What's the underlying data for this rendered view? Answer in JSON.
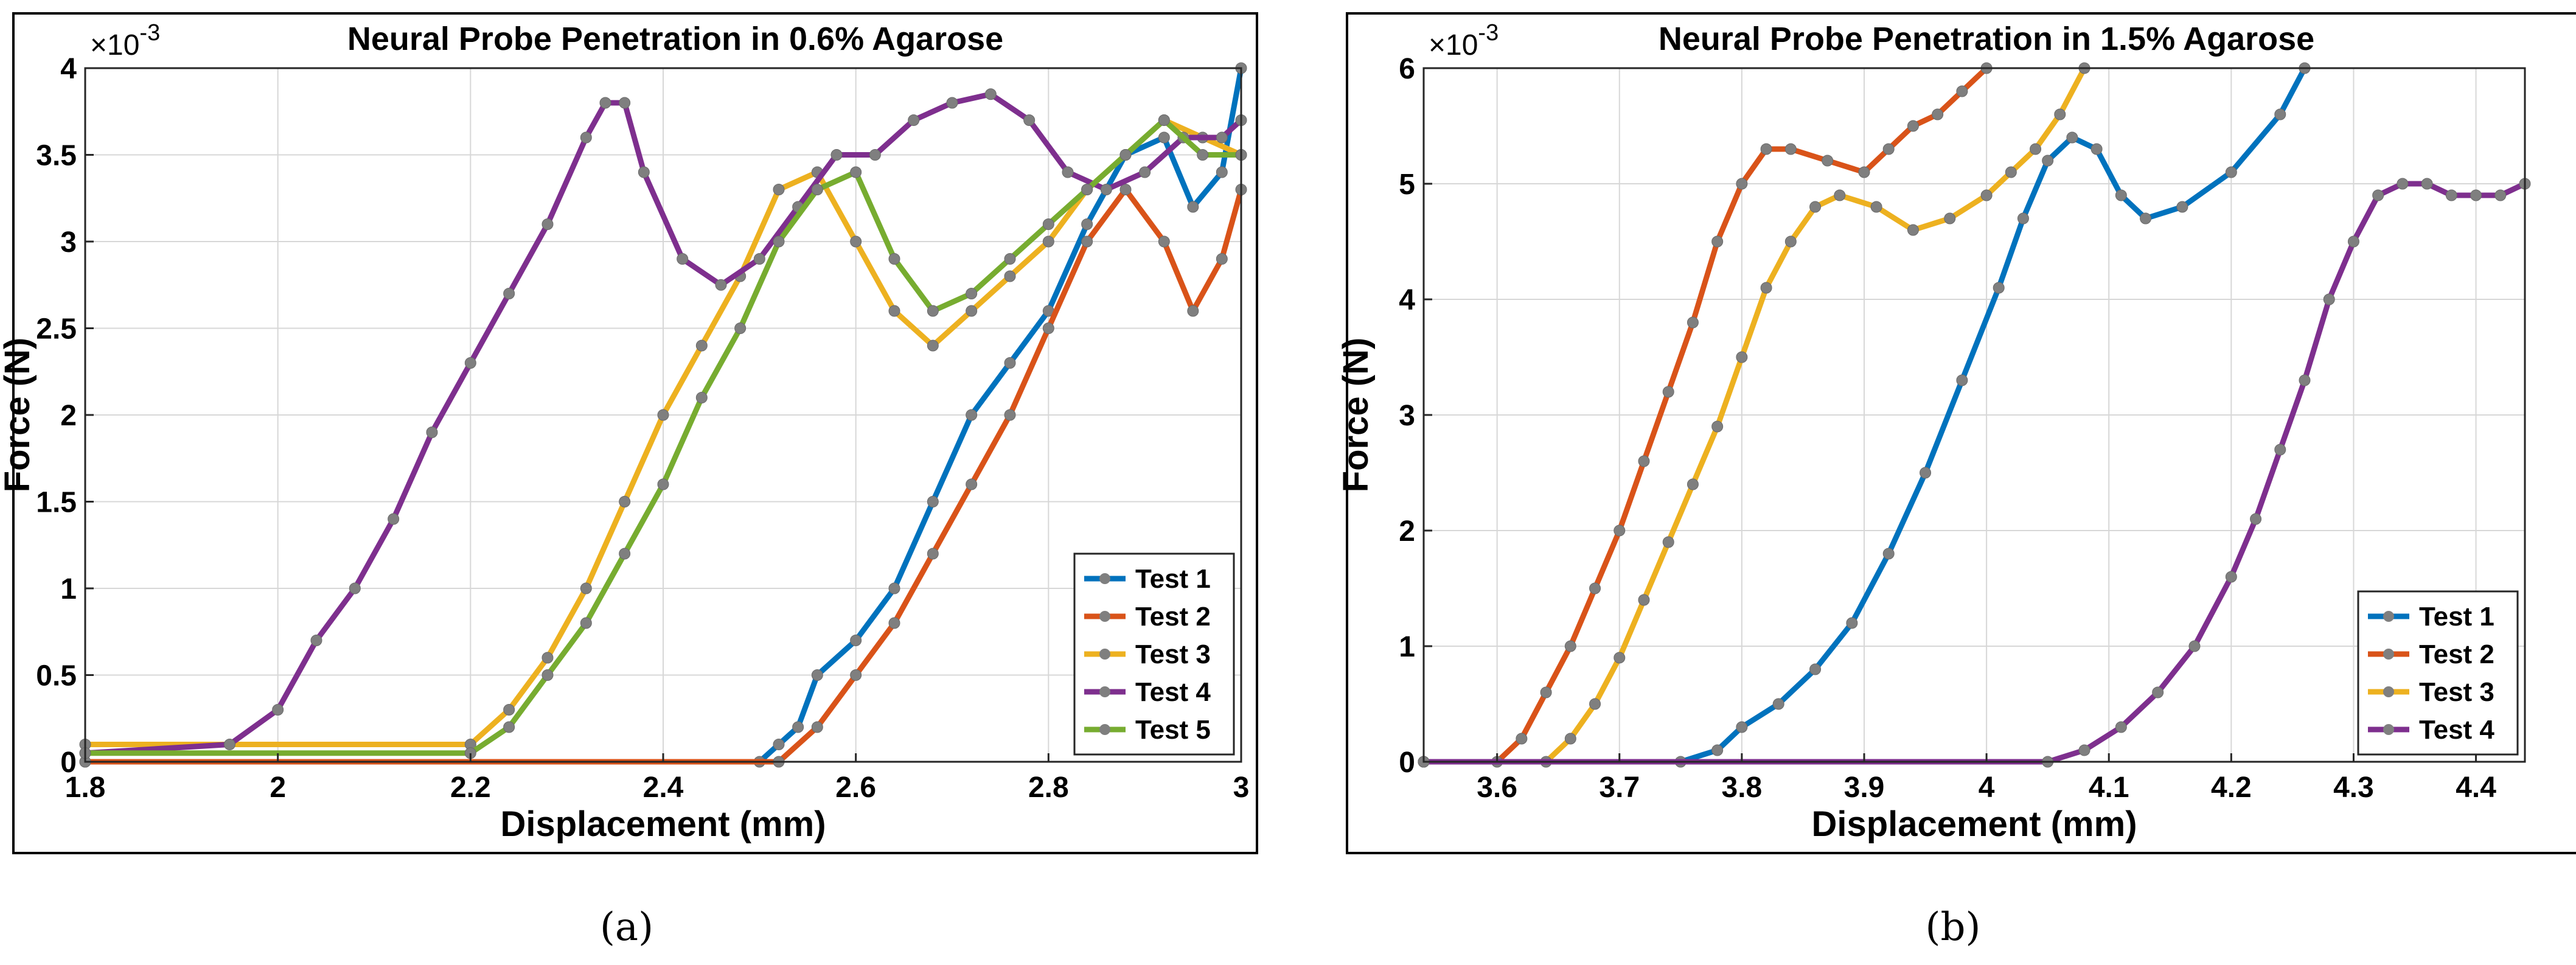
{
  "figure": {
    "labels": [
      "(a)",
      "(b)"
    ]
  },
  "chart_data": [
    {
      "type": "line",
      "title": "Neural Probe Penetration in 0.6% Agarose",
      "xlabel": "Displacement (mm)",
      "ylabel": "Force (N)",
      "y_multiplier": "×10",
      "y_exponent": "-3",
      "xlim": [
        1.8,
        3.0
      ],
      "ylim": [
        0,
        4
      ],
      "xticks": [
        1.8,
        2.0,
        2.2,
        2.4,
        2.6,
        2.8,
        3.0
      ],
      "xtick_labels": [
        "1.8",
        "2",
        "2.2",
        "2.4",
        "2.6",
        "2.8",
        "3"
      ],
      "yticks": [
        0,
        0.5,
        1,
        1.5,
        2,
        2.5,
        3,
        3.5,
        4
      ],
      "ytick_labels": [
        "0",
        "0.5",
        "1",
        "1.5",
        "2",
        "2.5",
        "3",
        "3.5",
        "4"
      ],
      "grid": true,
      "legend_position": "bottom-right",
      "series": [
        {
          "name": "Test 1",
          "color": "#0072BD",
          "x": [
            1.8,
            2.5,
            2.52,
            2.54,
            2.56,
            2.6,
            2.64,
            2.68,
            2.72,
            2.76,
            2.8,
            2.84,
            2.88,
            2.92,
            2.95,
            2.98,
            3.0
          ],
          "y": [
            0.0,
            0.0,
            0.1,
            0.2,
            0.5,
            0.7,
            1.0,
            1.5,
            2.0,
            2.3,
            2.6,
            3.1,
            3.5,
            3.6,
            3.2,
            3.4,
            4.0
          ]
        },
        {
          "name": "Test 2",
          "color": "#D95319",
          "x": [
            1.8,
            2.52,
            2.56,
            2.6,
            2.64,
            2.68,
            2.72,
            2.76,
            2.8,
            2.84,
            2.88,
            2.92,
            2.95,
            2.98,
            3.0
          ],
          "y": [
            0.0,
            0.0,
            0.2,
            0.5,
            0.8,
            1.2,
            1.6,
            2.0,
            2.5,
            3.0,
            3.3,
            3.0,
            2.6,
            2.9,
            3.3
          ]
        },
        {
          "name": "Test 3",
          "color": "#EDB120",
          "x": [
            1.8,
            2.2,
            2.24,
            2.28,
            2.32,
            2.36,
            2.4,
            2.44,
            2.48,
            2.52,
            2.56,
            2.6,
            2.64,
            2.68,
            2.72,
            2.76,
            2.8,
            2.84,
            2.88,
            2.92,
            2.96,
            3.0
          ],
          "y": [
            0.1,
            0.1,
            0.3,
            0.6,
            1.0,
            1.5,
            2.0,
            2.4,
            2.8,
            3.3,
            3.4,
            3.0,
            2.6,
            2.4,
            2.6,
            2.8,
            3.0,
            3.3,
            3.5,
            3.7,
            3.6,
            3.5
          ]
        },
        {
          "name": "Test 4",
          "color": "#7E2F8E",
          "x": [
            1.8,
            1.95,
            2.0,
            2.04,
            2.08,
            2.12,
            2.16,
            2.2,
            2.24,
            2.28,
            2.32,
            2.34,
            2.36,
            2.38,
            2.42,
            2.46,
            2.5,
            2.54,
            2.58,
            2.62,
            2.66,
            2.7,
            2.74,
            2.78,
            2.82,
            2.86,
            2.9,
            2.94,
            2.98,
            3.0
          ],
          "y": [
            0.05,
            0.1,
            0.3,
            0.7,
            1.0,
            1.4,
            1.9,
            2.3,
            2.7,
            3.1,
            3.6,
            3.8,
            3.8,
            3.4,
            2.9,
            2.75,
            2.9,
            3.2,
            3.5,
            3.5,
            3.7,
            3.8,
            3.85,
            3.7,
            3.4,
            3.3,
            3.4,
            3.6,
            3.6,
            3.7
          ]
        },
        {
          "name": "Test 5",
          "color": "#77AC30",
          "x": [
            1.8,
            2.2,
            2.24,
            2.28,
            2.32,
            2.36,
            2.4,
            2.44,
            2.48,
            2.52,
            2.56,
            2.6,
            2.64,
            2.68,
            2.72,
            2.76,
            2.8,
            2.84,
            2.88,
            2.92,
            2.96,
            3.0
          ],
          "y": [
            0.05,
            0.05,
            0.2,
            0.5,
            0.8,
            1.2,
            1.6,
            2.1,
            2.5,
            3.0,
            3.3,
            3.4,
            2.9,
            2.6,
            2.7,
            2.9,
            3.1,
            3.3,
            3.5,
            3.7,
            3.5,
            3.5
          ]
        }
      ]
    },
    {
      "type": "line",
      "title": "Neural Probe Penetration in 1.5% Agarose",
      "xlabel": "Displacement (mm)",
      "ylabel": "Force (N)",
      "y_multiplier": "×10",
      "y_exponent": "-3",
      "xlim": [
        3.54,
        4.44
      ],
      "ylim": [
        0,
        6
      ],
      "xticks": [
        3.6,
        3.7,
        3.8,
        3.9,
        4.0,
        4.1,
        4.2,
        4.3,
        4.4
      ],
      "xtick_labels": [
        "3.6",
        "3.7",
        "3.8",
        "3.9",
        "4",
        "4.1",
        "4.2",
        "4.3",
        "4.4"
      ],
      "yticks": [
        0,
        1,
        2,
        3,
        4,
        5,
        6
      ],
      "ytick_labels": [
        "0",
        "1",
        "2",
        "3",
        "4",
        "5",
        "6"
      ],
      "grid": true,
      "legend_position": "bottom-right",
      "series": [
        {
          "name": "Test 1",
          "color": "#0072BD",
          "x": [
            3.54,
            3.75,
            3.78,
            3.8,
            3.83,
            3.86,
            3.89,
            3.92,
            3.95,
            3.98,
            4.01,
            4.03,
            4.05,
            4.07,
            4.09,
            4.11,
            4.13,
            4.16,
            4.2,
            4.24,
            4.26
          ],
          "y": [
            0.0,
            0.0,
            0.1,
            0.3,
            0.5,
            0.8,
            1.2,
            1.8,
            2.5,
            3.3,
            4.1,
            4.7,
            5.2,
            5.4,
            5.3,
            4.9,
            4.7,
            4.8,
            5.1,
            5.6,
            6.0
          ]
        },
        {
          "name": "Test 2",
          "color": "#D95319",
          "x": [
            3.54,
            3.6,
            3.62,
            3.64,
            3.66,
            3.68,
            3.7,
            3.72,
            3.74,
            3.76,
            3.78,
            3.8,
            3.82,
            3.84,
            3.87,
            3.9,
            3.92,
            3.94,
            3.96,
            3.98,
            4.0
          ],
          "y": [
            0.0,
            0.0,
            0.2,
            0.6,
            1.0,
            1.5,
            2.0,
            2.6,
            3.2,
            3.8,
            4.5,
            5.0,
            5.3,
            5.3,
            5.2,
            5.1,
            5.3,
            5.5,
            5.6,
            5.8,
            6.0
          ]
        },
        {
          "name": "Test 3",
          "color": "#EDB120",
          "x": [
            3.54,
            3.64,
            3.66,
            3.68,
            3.7,
            3.72,
            3.74,
            3.76,
            3.78,
            3.8,
            3.82,
            3.84,
            3.86,
            3.88,
            3.91,
            3.94,
            3.97,
            4.0,
            4.02,
            4.04,
            4.06,
            4.08
          ],
          "y": [
            0.0,
            0.0,
            0.2,
            0.5,
            0.9,
            1.4,
            1.9,
            2.4,
            2.9,
            3.5,
            4.1,
            4.5,
            4.8,
            4.9,
            4.8,
            4.6,
            4.7,
            4.9,
            5.1,
            5.3,
            5.6,
            6.0
          ]
        },
        {
          "name": "Test 4",
          "color": "#7E2F8E",
          "x": [
            3.54,
            4.05,
            4.08,
            4.11,
            4.14,
            4.17,
            4.2,
            4.22,
            4.24,
            4.26,
            4.28,
            4.3,
            4.32,
            4.34,
            4.36,
            4.38,
            4.4,
            4.42,
            4.44
          ],
          "y": [
            0.0,
            0.0,
            0.1,
            0.3,
            0.6,
            1.0,
            1.6,
            2.1,
            2.7,
            3.3,
            4.0,
            4.5,
            4.9,
            5.0,
            5.0,
            4.9,
            4.9,
            4.9,
            5.0
          ]
        }
      ]
    }
  ]
}
